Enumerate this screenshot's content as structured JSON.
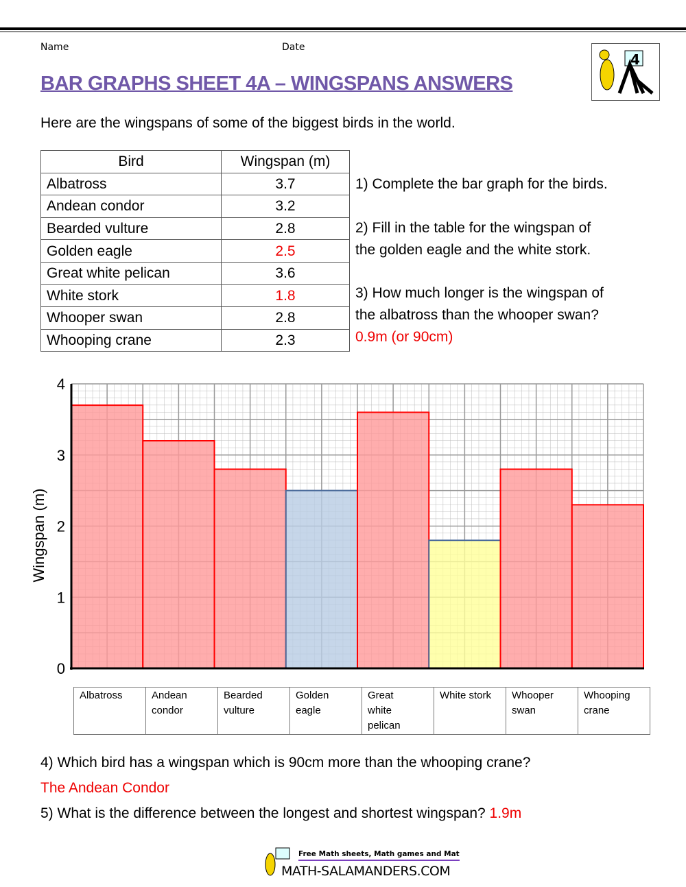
{
  "header": {
    "name_label": "Name",
    "date_label": "Date",
    "title": "BAR GRAPHS SHEET 4A – WINGSPANS ANSWERS",
    "logo_number": "4"
  },
  "intro": "Here are the wingspans of some of the biggest birds in the world.",
  "table": {
    "headers": [
      "Bird",
      "Wingspan (m)"
    ],
    "rows": [
      {
        "bird": "Albatross",
        "wingspan": "3.7"
      },
      {
        "bird": "Andean condor",
        "wingspan": "3.2"
      },
      {
        "bird": "Bearded vulture",
        "wingspan": "2.8"
      },
      {
        "bird": "Golden eagle",
        "wingspan": "2.5"
      },
      {
        "bird": "Great white pelican",
        "wingspan": "3.6"
      },
      {
        "bird": "White stork",
        "wingspan": "1.8"
      },
      {
        "bird": "Whooper swan",
        "wingspan": "2.8"
      },
      {
        "bird": "Whooping crane",
        "wingspan": "2.3"
      }
    ]
  },
  "questions": {
    "q1": "1) Complete the bar graph for the birds.",
    "q2a": "2) Fill in the table for the wingspan of",
    "q2b": "the golden eagle and the white stork.",
    "q3a": "3) How much longer is the wingspan of",
    "q3b": "the albatross than the whooper swan?",
    "a3": "0.9m (or 90cm)",
    "q4": "4) Which bird has a wingspan which is 90cm more than the whooping crane?",
    "a4": "The Andean Condor",
    "q5": "5) What is the difference between the longest and shortest wingspan?",
    "a5": "1.9m"
  },
  "chart_data": {
    "type": "bar",
    "ylabel": "Wingspan (m)",
    "ylim": [
      0,
      4
    ],
    "yticks": [
      "0",
      "1",
      "2",
      "3",
      "4"
    ],
    "grid": true,
    "categories": [
      "Albatross",
      "Andean condor",
      "Bearded vulture",
      "Golden eagle",
      "Great white pelican",
      "White stork",
      "Whooper swan",
      "Whooping crane"
    ],
    "category_lines": [
      [
        "Albatross"
      ],
      [
        "Andean",
        "condor"
      ],
      [
        "Bearded",
        "vulture"
      ],
      [
        "Golden",
        "eagle"
      ],
      [
        "Great",
        "white",
        "pelican"
      ],
      [
        "White stork"
      ],
      [
        "Whooper",
        "swan"
      ],
      [
        "Whooping",
        "crane"
      ]
    ],
    "values": [
      3.7,
      3.2,
      2.8,
      2.5,
      3.6,
      1.8,
      2.8,
      2.3
    ],
    "colors": [
      "#ff9999",
      "#ff9999",
      "#ff9999",
      "#b8cce4",
      "#ff9999",
      "#ffff99",
      "#ff9999",
      "#ff9999"
    ],
    "strokes": [
      "#ff0000",
      "#ff0000",
      "#ff0000",
      "#4a6a9a",
      "#ff0000",
      "#4a6a9a",
      "#ff0000",
      "#ff0000"
    ]
  },
  "footer": {
    "tagline": "Free Math sheets, Math games and Math help",
    "site": "MATH-SALAMANDERS.COM"
  }
}
